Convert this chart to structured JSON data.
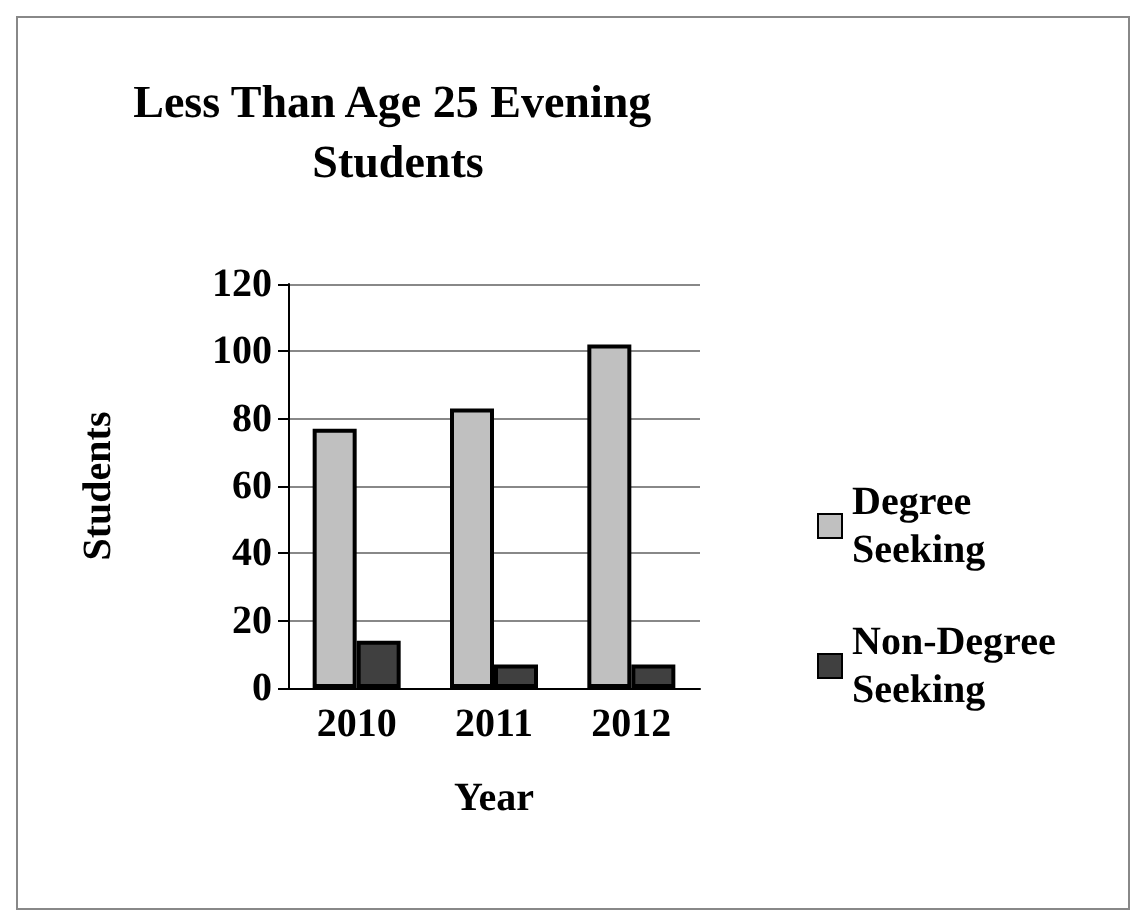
{
  "chart_data": {
    "type": "bar",
    "title": "Less Than Age 25 Evening Students",
    "xlabel": "Year",
    "ylabel": "Students",
    "categories": [
      "2010",
      "2011",
      "2012"
    ],
    "series": [
      {
        "name": "Degree Seeking",
        "color": "#c0c0c0",
        "values": [
          77,
          83,
          102
        ]
      },
      {
        "name": "Non-Degree Seeking",
        "color": "#404040",
        "values": [
          14,
          7,
          7
        ]
      }
    ],
    "ylim": [
      0,
      120
    ],
    "yticks": [
      0,
      20,
      40,
      60,
      80,
      100,
      120
    ],
    "grid": "y",
    "legend": "right"
  }
}
